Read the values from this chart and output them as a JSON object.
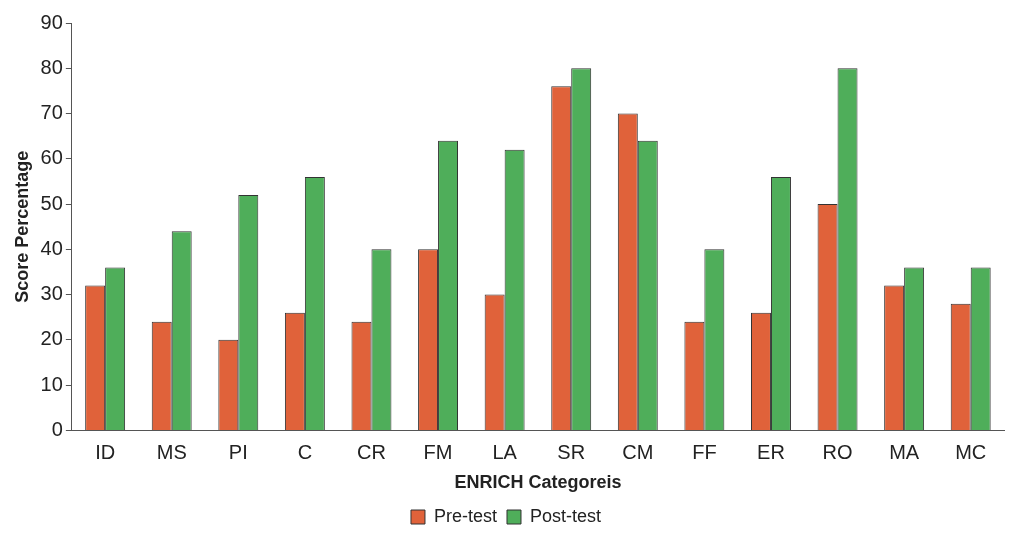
{
  "chart_data": {
    "type": "bar",
    "xlabel": "ENRICH Categoreis",
    "ylabel": "Score Percentage",
    "categories": [
      "ID",
      "MS",
      "PI",
      "C",
      "CR",
      "FM",
      "LA",
      "SR",
      "CM",
      "FF",
      "ER",
      "RO",
      "MA",
      "MC"
    ],
    "series": [
      {
        "name": "Pre-test",
        "color": "#e0623a",
        "values": [
          32,
          24,
          20,
          26,
          24,
          40,
          30,
          76,
          70,
          24,
          26,
          50,
          32,
          28
        ]
      },
      {
        "name": "Post-test",
        "color": "#4fae5a",
        "values": [
          36,
          44,
          52,
          56,
          40,
          64,
          62,
          80,
          64,
          40,
          56,
          80,
          36,
          36
        ]
      }
    ],
    "ylim": [
      0,
      90
    ],
    "yticks": [
      0,
      10,
      20,
      30,
      40,
      50,
      60,
      70,
      80,
      90
    ],
    "grid": false,
    "legend": "bottom"
  }
}
